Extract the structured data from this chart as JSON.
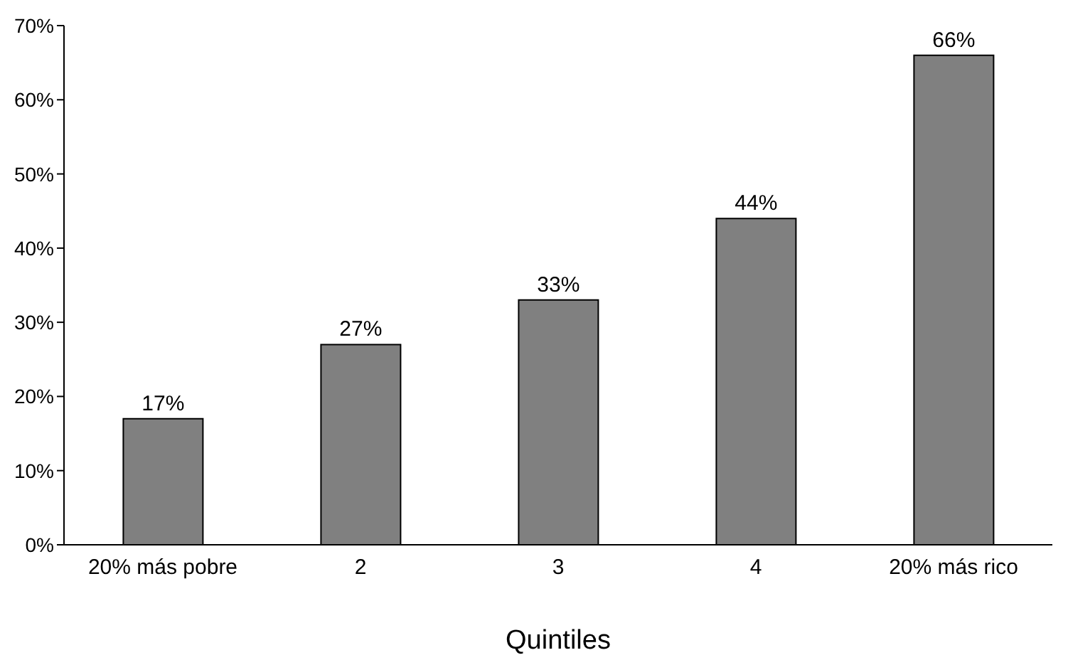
{
  "chart_data": {
    "type": "bar",
    "xlabel": "Quintiles",
    "categories": [
      "20% más pobre",
      "2",
      "3",
      "4",
      "20% más rico"
    ],
    "values": [
      17,
      27,
      33,
      44,
      66
    ],
    "color": "#808080",
    "value_labels": [
      "17%",
      "27%",
      "33%",
      "44%",
      "66%"
    ],
    "ylim": [
      0,
      70
    ],
    "yticks": [
      {
        "value": 0,
        "label": "0%"
      },
      {
        "value": 10,
        "label": "10%"
      },
      {
        "value": 20,
        "label": "20%"
      },
      {
        "value": 30,
        "label": "30%"
      },
      {
        "value": 40,
        "label": "40%"
      },
      {
        "value": 50,
        "label": "50%"
      },
      {
        "value": 60,
        "label": "60%"
      },
      {
        "value": 70,
        "label": "70%"
      }
    ],
    "grid": false,
    "legend": false
  }
}
